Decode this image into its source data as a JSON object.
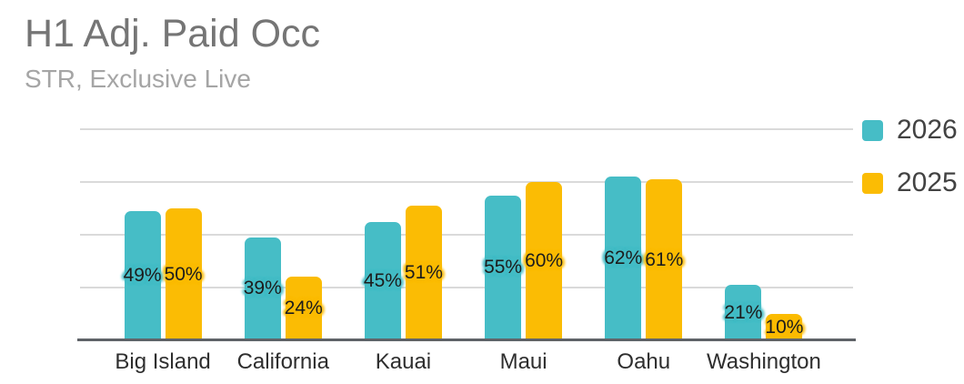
{
  "header": {
    "title": "H1 Adj. Paid Occ",
    "subtitle": "STR, Exclusive Live"
  },
  "legend": {
    "position": "right",
    "items": [
      {
        "label": "2026",
        "color": "#46BDC6"
      },
      {
        "label": "2025",
        "color": "#FBBC04"
      }
    ]
  },
  "chart_data": {
    "type": "bar",
    "title": "H1 Adj. Paid Occ",
    "subtitle": "STR, Exclusive Live",
    "categories": [
      "Big Island",
      "California",
      "Kauai",
      "Maui",
      "Oahu",
      "Washington"
    ],
    "series": [
      {
        "name": "2026",
        "color": "#46BDC6",
        "values": [
          49,
          39,
          45,
          55,
          62,
          21
        ]
      },
      {
        "name": "2025",
        "color": "#FBBC04",
        "values": [
          50,
          24,
          51,
          60,
          61,
          10
        ]
      }
    ],
    "data_label_format": "{value}%",
    "data_label_placement": "center-inside-bar",
    "ylim": [
      0,
      80
    ],
    "gridline_interval": 20,
    "grid": true,
    "legend_position": "right",
    "xlabel": "",
    "ylabel": ""
  },
  "colors": {
    "background": "#FFFFFF",
    "series_2026": "#46BDC6",
    "series_2025": "#FBBC04",
    "title_text": "#757575",
    "subtitle_text": "#A5A5A5",
    "axis_label_text": "#2E2E2E",
    "legend_text": "#424242",
    "data_label_text": "#1C1C1C",
    "gridline": "#DADADA",
    "baseline": "#5F6368"
  }
}
